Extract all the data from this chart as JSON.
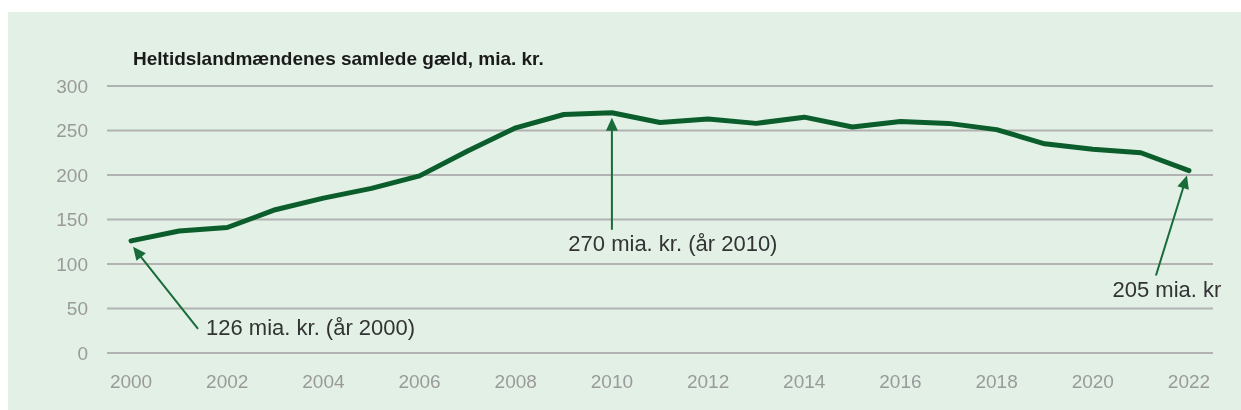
{
  "chart_data": {
    "type": "line",
    "title": "Heltidslandmændenes samlede gæld, mia. kr.",
    "x": [
      2000,
      2001,
      2002,
      2003,
      2004,
      2005,
      2006,
      2007,
      2008,
      2009,
      2010,
      2011,
      2012,
      2013,
      2014,
      2015,
      2016,
      2017,
      2018,
      2019,
      2020,
      2021,
      2022
    ],
    "xlim": [
      1999.5,
      2022.5
    ],
    "xticks": [
      2000,
      2002,
      2004,
      2006,
      2008,
      2010,
      2012,
      2014,
      2016,
      2018,
      2020,
      2022
    ],
    "ylim": [
      0,
      300
    ],
    "yticks": [
      0,
      50,
      100,
      150,
      200,
      250,
      300
    ],
    "grid": "y",
    "series": [
      {
        "color": "#0b5e2c",
        "values": [
          126,
          137,
          141,
          161,
          174,
          185,
          199,
          227,
          253,
          268,
          270,
          259,
          263,
          258,
          265,
          254,
          260,
          258,
          251,
          235,
          229,
          225,
          205
        ]
      }
    ],
    "annotations": [
      "126 mia. kr. (år 2000)",
      "270 mia. kr. (år 2010)",
      "205 mia. kr"
    ]
  }
}
